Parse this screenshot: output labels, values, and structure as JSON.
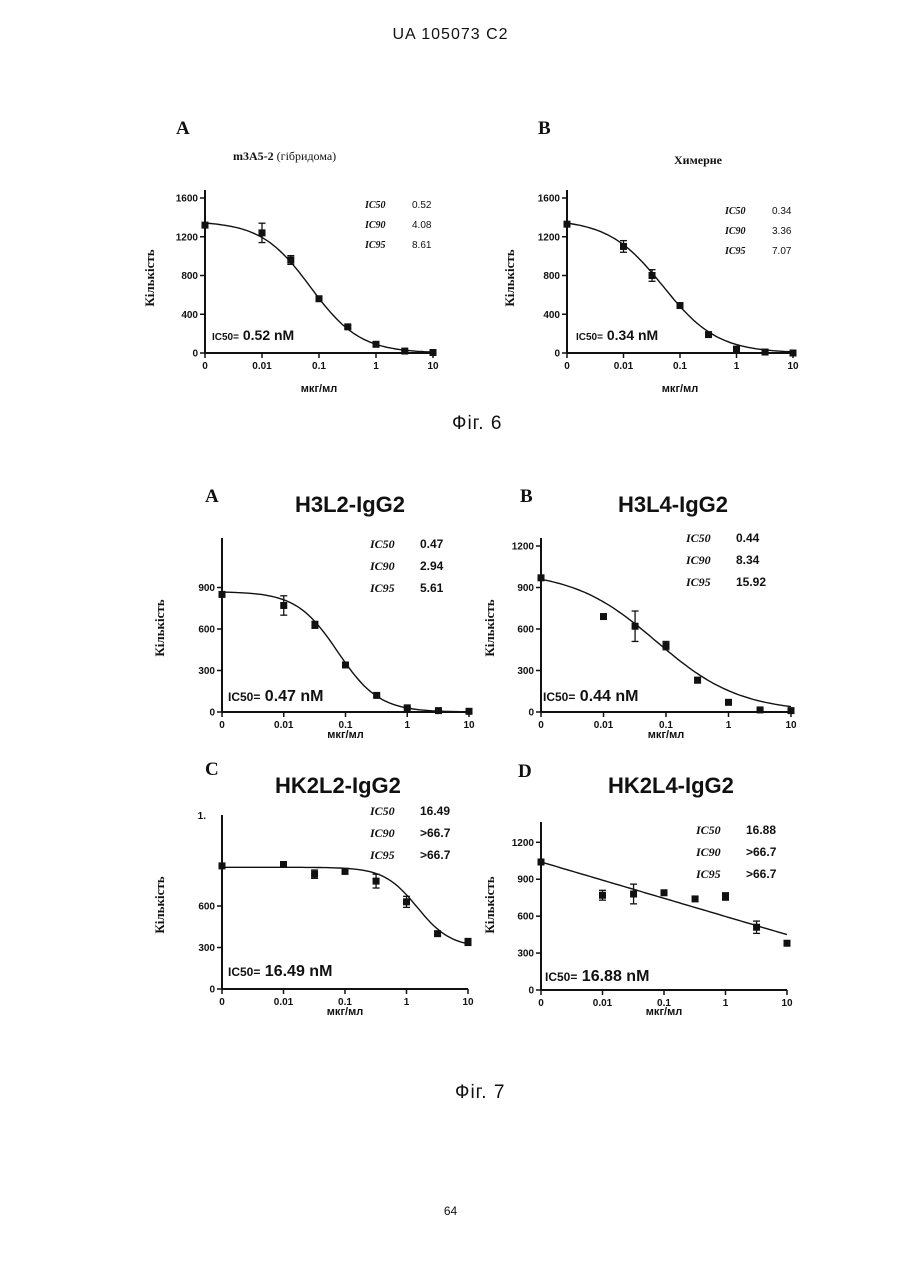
{
  "header": "UA   105073   C2",
  "footer": "64",
  "figures": [
    {
      "caption": "Фіг. 6"
    },
    {
      "caption": "Фіг. 7"
    }
  ],
  "chart_data": [
    {
      "type": "scatter",
      "letter": "A",
      "title": "m3A5-2",
      "title_suffix": " (гібридома)",
      "ylabel": "Кількість",
      "xlabel": "мкг/мл",
      "xscale": "log",
      "xticks": [
        "0",
        "0.01",
        "0.1",
        "1",
        "10"
      ],
      "ylim": [
        0,
        1600
      ],
      "yticks": [
        "0",
        "400",
        "800",
        "1200",
        "1600"
      ],
      "series": [
        {
          "points": [
            [
              0.001,
              1320
            ],
            [
              0.01,
              1240
            ],
            [
              0.032,
              960
            ],
            [
              0.1,
              560
            ],
            [
              0.32,
              270
            ],
            [
              1,
              90
            ],
            [
              3.2,
              20
            ],
            [
              10,
              5
            ]
          ],
          "err": [
            0,
            100,
            45,
            25,
            15,
            10,
            5,
            5
          ]
        }
      ],
      "fit": {
        "top": 1360,
        "bottom": 0,
        "ic50": 0.071,
        "hill": 1.0
      },
      "stats": [
        [
          "IC50",
          "0.52"
        ],
        [
          "IC90",
          "4.08"
        ],
        [
          "IC95",
          "8.61"
        ]
      ],
      "annotation": {
        "label": "IC50=",
        "value": " 0.52 nM"
      }
    },
    {
      "type": "scatter",
      "letter": "B",
      "title": "Химерне",
      "ylabel": "Кількість",
      "xlabel": "мкг/мл",
      "xscale": "log",
      "xticks": [
        "0",
        "0.01",
        "0.1",
        "1",
        "10"
      ],
      "ylim": [
        0,
        1600
      ],
      "yticks": [
        "0",
        "400",
        "800",
        "1200",
        "1600"
      ],
      "series": [
        {
          "points": [
            [
              0.001,
              1330
            ],
            [
              0.01,
              1100
            ],
            [
              0.032,
              800
            ],
            [
              0.1,
              490
            ],
            [
              0.32,
              190
            ],
            [
              1,
              40
            ],
            [
              3.2,
              10
            ],
            [
              10,
              0
            ]
          ],
          "err": [
            0,
            60,
            60,
            20,
            15,
            10,
            5,
            5
          ]
        }
      ],
      "fit": {
        "top": 1380,
        "bottom": 0,
        "ic50": 0.05,
        "hill": 0.9
      },
      "stats": [
        [
          "IC50",
          "0.34"
        ],
        [
          "IC90",
          "3.36"
        ],
        [
          "IC95",
          "7.07"
        ]
      ],
      "annotation": {
        "label": "IC50=",
        "value": " 0.34 nM"
      }
    },
    {
      "type": "scatter",
      "letter": "A",
      "title": "H3L2-IgG2",
      "ylabel": "Кількість",
      "xlabel": "мкг/мл",
      "xscale": "log",
      "xticks": [
        "0",
        "0.01",
        "0.1",
        "1",
        "10"
      ],
      "ylim": [
        0,
        1200
      ],
      "yticks": [
        "0",
        "300",
        "600",
        "900"
      ],
      "series": [
        {
          "points": [
            [
              0.001,
              850
            ],
            [
              0.01,
              770
            ],
            [
              0.032,
              630
            ],
            [
              0.1,
              340
            ],
            [
              0.32,
              120
            ],
            [
              1,
              30
            ],
            [
              3.2,
              10
            ],
            [
              10,
              5
            ]
          ],
          "err": [
            0,
            70,
            25,
            15,
            10,
            5,
            5,
            5
          ]
        }
      ],
      "fit": {
        "top": 870,
        "bottom": 0,
        "ic50": 0.075,
        "hill": 1.3
      },
      "stats": [
        [
          "IC50",
          "0.47"
        ],
        [
          "IC90",
          "2.94"
        ],
        [
          "IC95",
          "5.61"
        ]
      ],
      "annotation": {
        "label": "IC50=",
        "value": " 0.47 nM"
      }
    },
    {
      "type": "scatter",
      "letter": "B",
      "title": "H3L4-IgG2",
      "ylabel": "Кількість",
      "xlabel": "мкг/мл",
      "xscale": "log",
      "xticks": [
        "0",
        "0.01",
        "0.1",
        "1",
        "10"
      ],
      "ylim": [
        0,
        1200
      ],
      "yticks": [
        "0",
        "300",
        "600",
        "900",
        "1200"
      ],
      "series": [
        {
          "points": [
            [
              0.001,
              970
            ],
            [
              0.01,
              690
            ],
            [
              0.032,
              620
            ],
            [
              0.1,
              480
            ],
            [
              0.32,
              230
            ],
            [
              1,
              70
            ],
            [
              3.2,
              15
            ],
            [
              10,
              10
            ]
          ],
          "err": [
            0,
            10,
            110,
            30,
            20,
            10,
            5,
            5
          ]
        }
      ],
      "fit": {
        "top": 1020,
        "bottom": 0,
        "ic50": 0.07,
        "hill": 0.65
      },
      "stats": [
        [
          "IC50",
          "0.44"
        ],
        [
          "IC90",
          "8.34"
        ],
        [
          "IC95",
          "15.92"
        ]
      ],
      "annotation": {
        "label": "IC50=",
        "value": " 0.44 nM"
      }
    },
    {
      "type": "scatter",
      "letter": "C",
      "title": "HK2L2-IgG2",
      "ylabel": "Кількість",
      "xlabel": "мкг/мл",
      "xscale": "log",
      "xticks": [
        "0",
        "0.01",
        "0.1",
        "1",
        "10"
      ],
      "ylim": [
        0,
        1200
      ],
      "yticks": [
        "0",
        "300",
        "600"
      ],
      "ytop_label": "1.",
      "series": [
        {
          "points": [
            [
              0.001,
              890
            ],
            [
              0.01,
              900
            ],
            [
              0.032,
              830
            ],
            [
              0.1,
              850
            ],
            [
              0.32,
              780
            ],
            [
              1,
              630
            ],
            [
              3.2,
              400
            ],
            [
              10,
              340
            ]
          ],
          "err": [
            0,
            15,
            30,
            15,
            50,
            40,
            15,
            25
          ]
        }
      ],
      "fit": {
        "top": 880,
        "bottom": 300,
        "ic50": 1.5,
        "hill": 1.6
      },
      "stats": [
        [
          "IC50",
          "16.49"
        ],
        [
          "IC90",
          ">66.7"
        ],
        [
          "IC95",
          ">66.7"
        ]
      ],
      "annotation": {
        "label": "IC50=",
        "value": "  16.49 nM"
      }
    },
    {
      "type": "scatter",
      "letter": "D",
      "title": "HK2L4-IgG2",
      "ylabel": "Кількість",
      "xlabel": "мкг/мл",
      "xscale": "log",
      "xticks": [
        "0",
        "0.01",
        "0.1",
        "1",
        "10"
      ],
      "ylim": [
        0,
        1300
      ],
      "yticks": [
        "0",
        "300",
        "600",
        "900",
        "1200"
      ],
      "series": [
        {
          "points": [
            [
              0.001,
              1040
            ],
            [
              0.01,
              770
            ],
            [
              0.032,
              780
            ],
            [
              0.1,
              790
            ],
            [
              0.32,
              740
            ],
            [
              1,
              760
            ],
            [
              3.2,
              510
            ],
            [
              10,
              380
            ]
          ],
          "err": [
            0,
            40,
            80,
            15,
            15,
            30,
            50,
            15
          ]
        }
      ],
      "fit": {
        "linear": true,
        "y0": 1040,
        "y1": 450
      },
      "stats": [
        [
          "IC50",
          "16.88"
        ],
        [
          "IC90",
          ">66.7"
        ],
        [
          "IC95",
          ">66.7"
        ]
      ],
      "annotation": {
        "label": "IC50=",
        "value": " 16.88 nM"
      }
    }
  ]
}
